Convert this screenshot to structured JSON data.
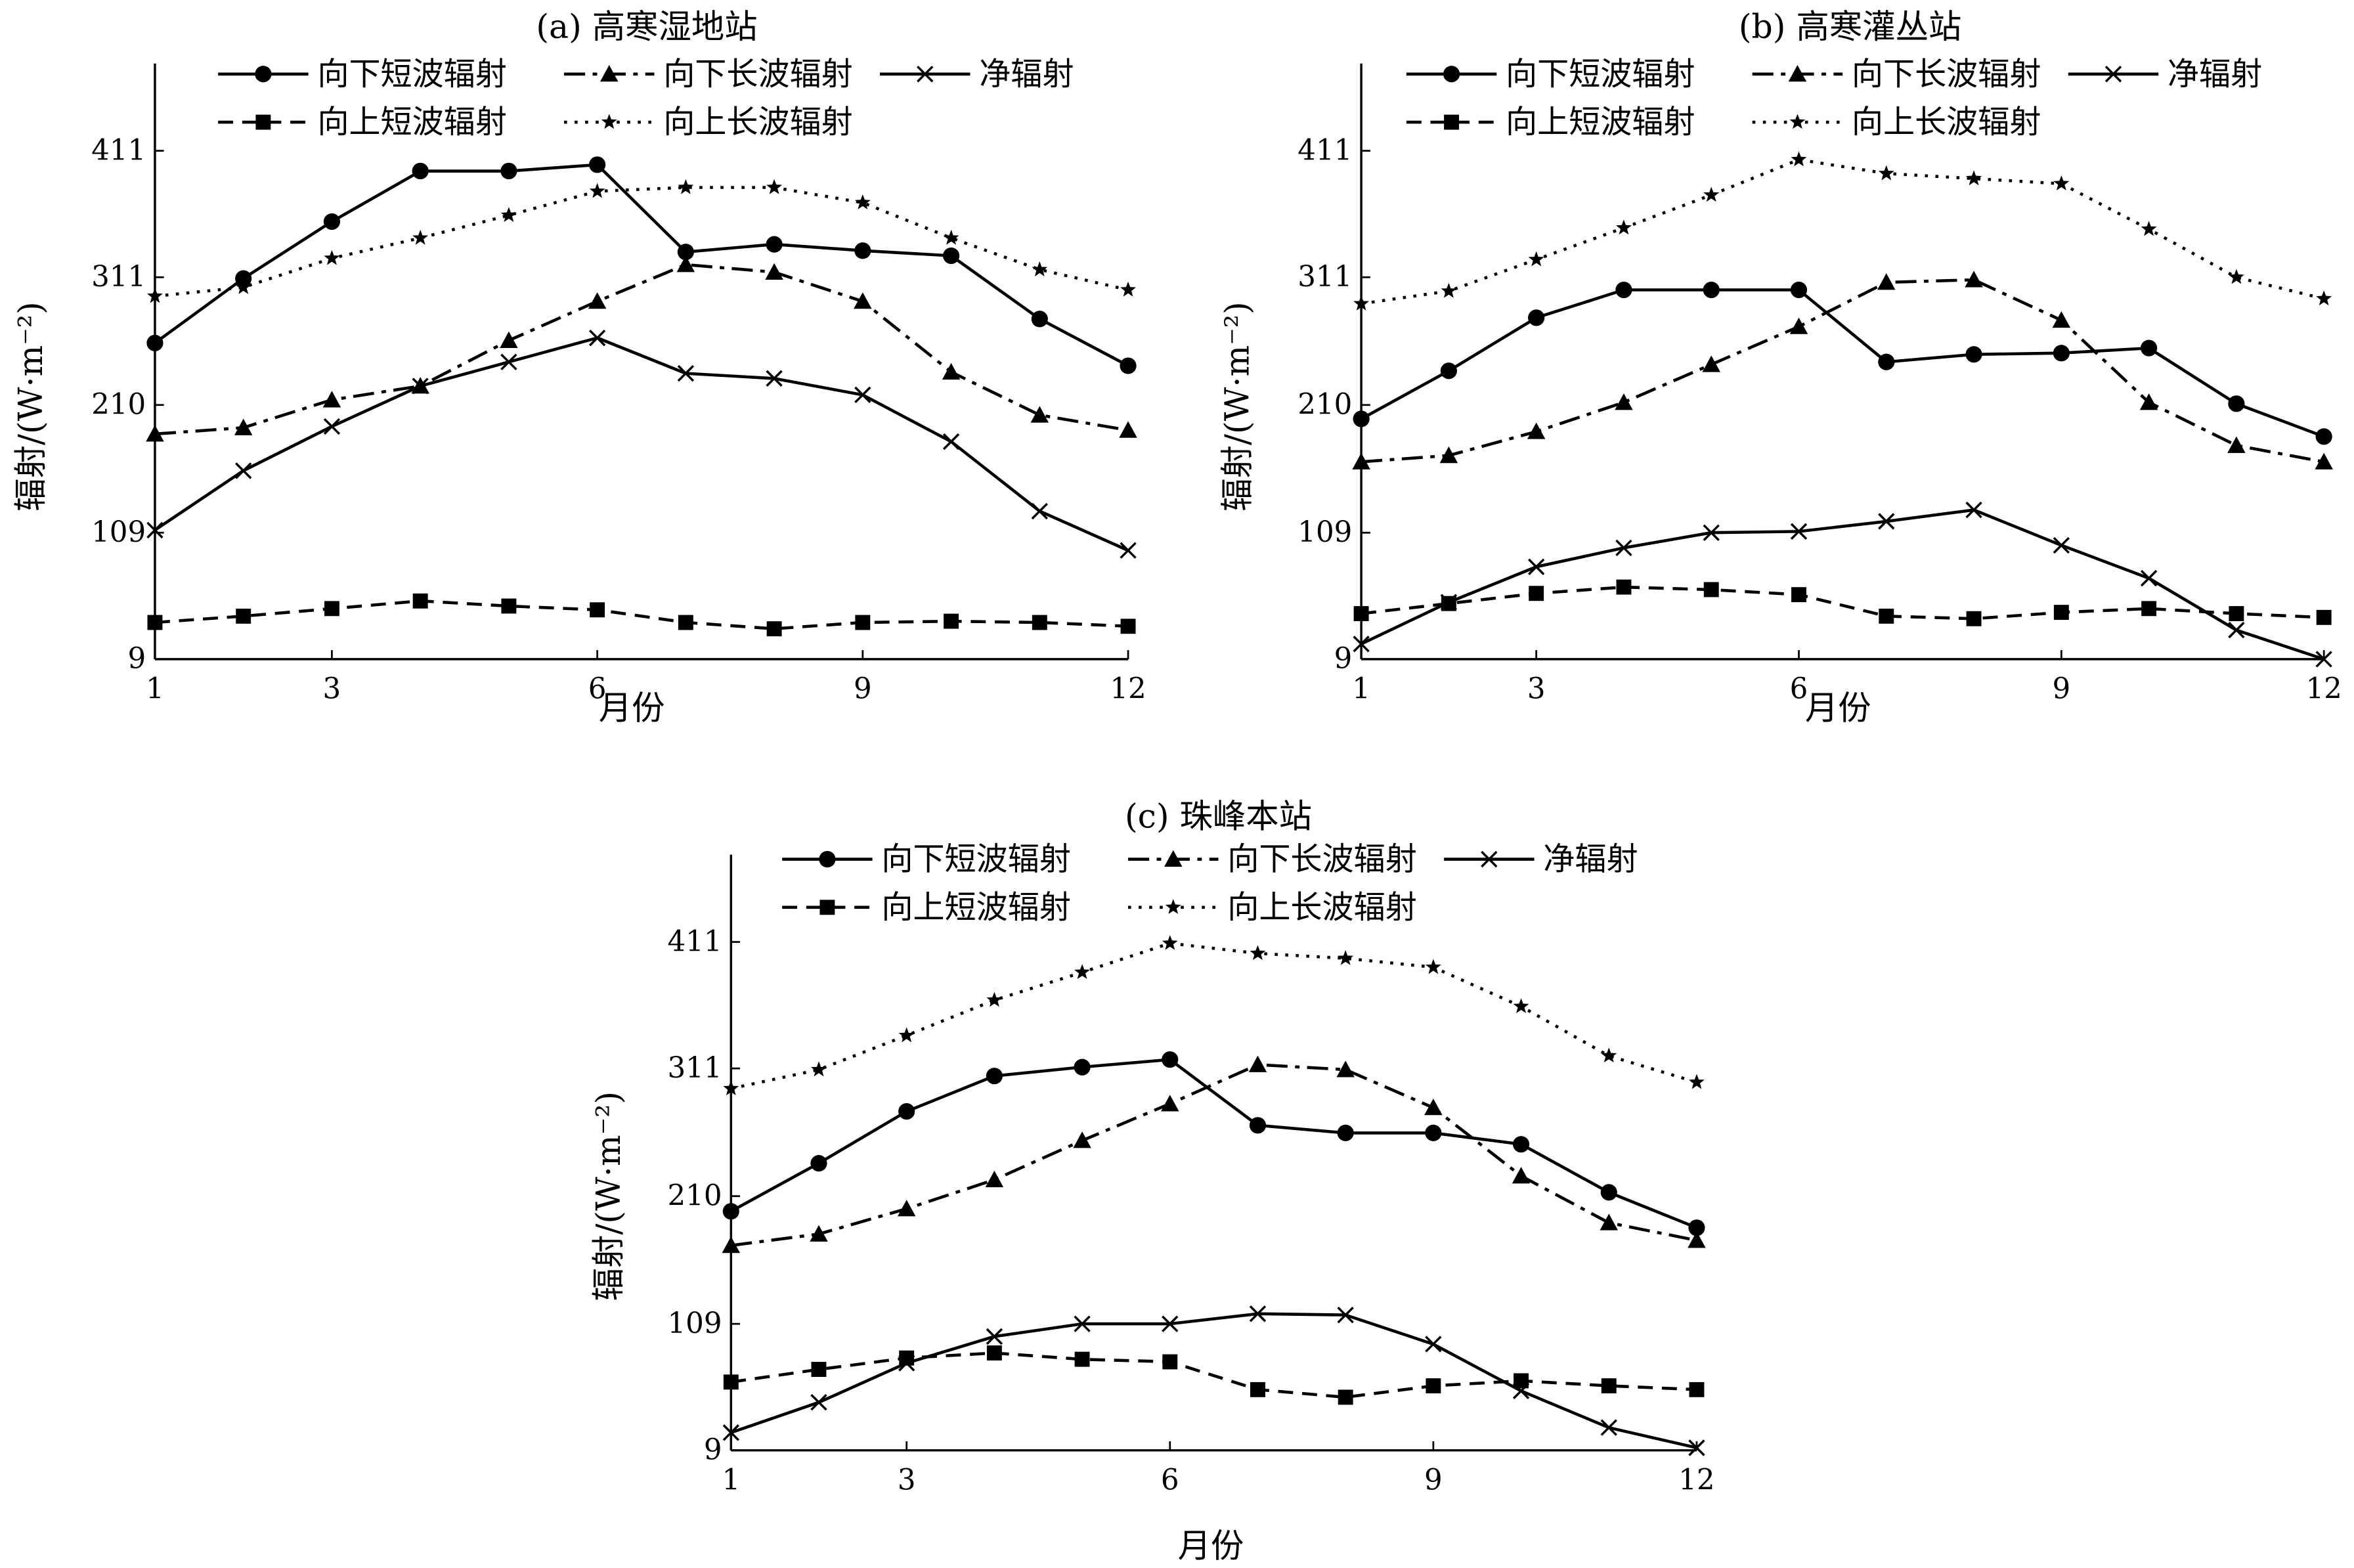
{
  "chart_data": [
    {
      "type": "line",
      "title": "(a) 高寒湿地站",
      "xlabel": "月份",
      "ylabel": "辐射/(W·m⁻²)",
      "x": [
        1,
        2,
        3,
        4,
        5,
        6,
        7,
        8,
        9,
        10,
        11,
        12
      ],
      "xticks": [
        1,
        3,
        6,
        9,
        12
      ],
      "yticks": [
        9,
        109,
        210,
        311,
        411
      ],
      "ylim": [
        9,
        480
      ],
      "series": [
        {
          "name": "向下短波辐射",
          "marker": "circle",
          "dash": "solid",
          "values": [
            259,
            310,
            355,
            395,
            395,
            400,
            331,
            337,
            332,
            328,
            278,
            241
          ]
        },
        {
          "name": "向下长波辐射",
          "marker": "triangle",
          "dash": "dashdot",
          "values": [
            187,
            192,
            214,
            225,
            261,
            292,
            321,
            315,
            292,
            236,
            202,
            190
          ]
        },
        {
          "name": "净辐射",
          "marker": "x",
          "dash": "solid",
          "values": [
            111,
            158,
            193,
            225,
            244,
            263,
            235,
            231,
            218,
            181,
            126,
            95
          ]
        },
        {
          "name": "向上短波辐射",
          "marker": "square",
          "dash": "dashed",
          "values": [
            38,
            43,
            49,
            55,
            51,
            48,
            38,
            33,
            38,
            39,
            38,
            35
          ]
        },
        {
          "name": "向上长波辐射",
          "marker": "star",
          "dash": "dotted",
          "values": [
            296,
            303,
            326,
            342,
            360,
            379,
            382,
            382,
            370,
            342,
            317,
            301
          ]
        }
      ]
    },
    {
      "type": "line",
      "title": "(b) 高寒灌丛站",
      "xlabel": "月份",
      "ylabel": "辐射/(W·m⁻²)",
      "x": [
        1,
        2,
        3,
        4,
        5,
        6,
        7,
        8,
        9,
        10,
        11,
        12
      ],
      "xticks": [
        1,
        3,
        6,
        9,
        12
      ],
      "yticks": [
        9,
        109,
        210,
        311,
        411
      ],
      "ylim": [
        9,
        480
      ],
      "series": [
        {
          "name": "向下短波辐射",
          "marker": "circle",
          "dash": "solid",
          "values": [
            199,
            237,
            279,
            301,
            301,
            301,
            244,
            250,
            251,
            255,
            211,
            185
          ]
        },
        {
          "name": "向下长波辐射",
          "marker": "triangle",
          "dash": "dashdot",
          "values": [
            165,
            170,
            189,
            212,
            242,
            272,
            307,
            309,
            277,
            212,
            178,
            165
          ]
        },
        {
          "name": "净辐射",
          "marker": "x",
          "dash": "solid",
          "values": [
            21,
            54,
            82,
            97,
            109,
            110,
            118,
            127,
            99,
            73,
            32,
            9
          ]
        },
        {
          "name": "向上短波辐射",
          "marker": "square",
          "dash": "dashed",
          "values": [
            45,
            53,
            61,
            66,
            64,
            60,
            43,
            41,
            46,
            49,
            45,
            42
          ]
        },
        {
          "name": "向上长波辐射",
          "marker": "star",
          "dash": "dotted",
          "values": [
            290,
            300,
            325,
            350,
            376,
            404,
            393,
            389,
            385,
            349,
            311,
            294
          ]
        }
      ]
    },
    {
      "type": "line",
      "title": "(c) 珠峰本站",
      "xlabel": "月份",
      "ylabel": "辐射/(W·m⁻²)",
      "x": [
        1,
        2,
        3,
        4,
        5,
        6,
        7,
        8,
        9,
        10,
        11,
        12
      ],
      "xticks": [
        1,
        3,
        6,
        9,
        12
      ],
      "yticks": [
        9,
        109,
        210,
        311,
        411
      ],
      "ylim": [
        9,
        480
      ],
      "series": [
        {
          "name": "向下短波辐射",
          "marker": "circle",
          "dash": "solid",
          "values": [
            198,
            236,
            277,
            305,
            312,
            318,
            266,
            260,
            260,
            251,
            213,
            185
          ]
        },
        {
          "name": "向下长波辐射",
          "marker": "triangle",
          "dash": "dashdot",
          "values": [
            171,
            180,
            200,
            223,
            254,
            283,
            314,
            310,
            280,
            226,
            189,
            175
          ]
        },
        {
          "name": "净辐射",
          "marker": "x",
          "dash": "solid",
          "values": [
            23,
            47,
            78,
            99,
            109,
            109,
            117,
            116,
            93,
            56,
            27,
            11
          ]
        },
        {
          "name": "向上短波辐射",
          "marker": "square",
          "dash": "dashed",
          "values": [
            63,
            73,
            82,
            86,
            81,
            79,
            57,
            51,
            60,
            64,
            60,
            57
          ]
        },
        {
          "name": "向上长波辐射",
          "marker": "star",
          "dash": "dotted",
          "values": [
            295,
            310,
            337,
            365,
            387,
            410,
            402,
            398,
            391,
            360,
            321,
            300
          ]
        }
      ]
    }
  ]
}
